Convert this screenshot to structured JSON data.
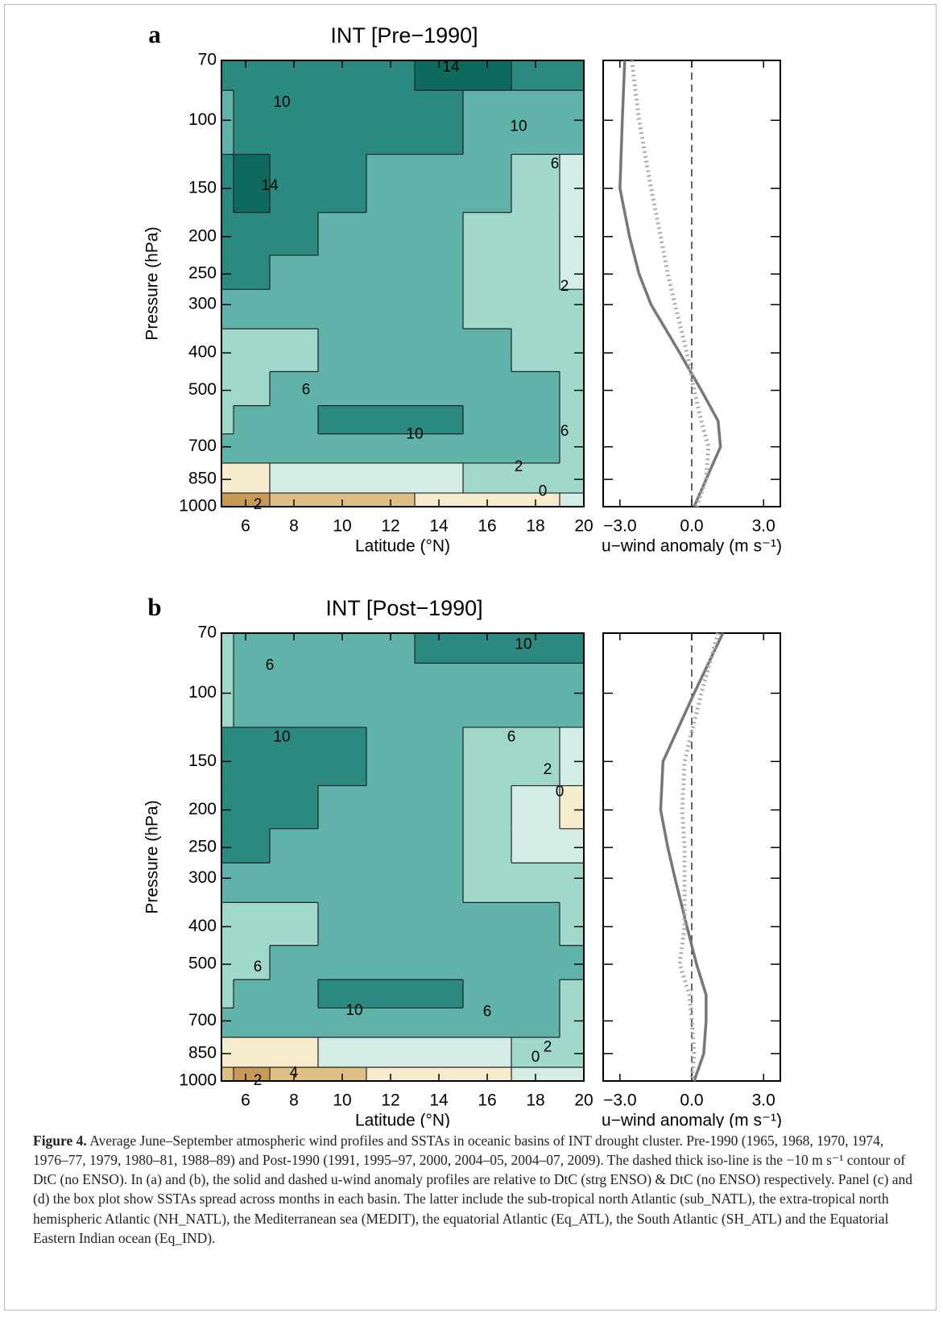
{
  "chart_data": [
    {
      "type": "contour",
      "panel": "a",
      "title": "INT [Pre−1990]",
      "xlabel": "Latitude (°N)",
      "ylabel": "Pressure (hPa)",
      "x": [
        5,
        6,
        8,
        10,
        12,
        14,
        16,
        18,
        20
      ],
      "y": [
        70,
        100,
        150,
        200,
        250,
        300,
        400,
        500,
        600,
        700,
        850,
        1000
      ],
      "z": [
        [
          12,
          11,
          11,
          12,
          13,
          14,
          14,
          12,
          11
        ],
        [
          9,
          10,
          11,
          12,
          11,
          10,
          9,
          8,
          7
        ],
        [
          13,
          15,
          12,
          10,
          9,
          8,
          7,
          4,
          1
        ],
        [
          13,
          13,
          11,
          9,
          8,
          7,
          5,
          2,
          0
        ],
        [
          11,
          10,
          9,
          8,
          7,
          6,
          4,
          2,
          1
        ],
        [
          7,
          7,
          7,
          7,
          7,
          6,
          5,
          3,
          3
        ],
        [
          5,
          5,
          5,
          6,
          7,
          7,
          6,
          5,
          4
        ],
        [
          5,
          5,
          6,
          7,
          8,
          9,
          7,
          6,
          5
        ],
        [
          5,
          6,
          8,
          10,
          11,
          11,
          8,
          6,
          5
        ],
        [
          6,
          6,
          7,
          8,
          8,
          8,
          7,
          6,
          5
        ],
        [
          -1,
          -1,
          0,
          1,
          1,
          1,
          2,
          2,
          2
        ],
        [
          -5,
          -5,
          -4,
          -3,
          -3,
          -2,
          -1,
          -1,
          0
        ]
      ],
      "levels": [
        -4,
        -2,
        0,
        2,
        6,
        10,
        14
      ],
      "colors": [
        "#c99a55",
        "#dfbf84",
        "#f6ebcd",
        "#d3ede6",
        "#a1d8cc",
        "#5fb3a8",
        "#2a8a7f",
        "#0f6a5e"
      ],
      "annotations": [
        {
          "text": "10",
          "x": 7.5,
          "y": 90
        },
        {
          "text": "14",
          "x": 14.5,
          "y": 73
        },
        {
          "text": "10",
          "x": 17.3,
          "y": 104
        },
        {
          "text": "6",
          "x": 18.8,
          "y": 130
        },
        {
          "text": "14",
          "x": 7,
          "y": 148
        },
        {
          "text": "2",
          "x": 19.2,
          "y": 270
        },
        {
          "text": "6",
          "x": 8.5,
          "y": 500
        },
        {
          "text": "10",
          "x": 13,
          "y": 650
        },
        {
          "text": "6",
          "x": 19.2,
          "y": 640
        },
        {
          "text": "2",
          "x": 17.3,
          "y": 790
        },
        {
          "text": "0",
          "x": 18.3,
          "y": 915
        },
        {
          "text": "2",
          "x": 6.5,
          "y": 990
        }
      ],
      "xlim": [
        5,
        20
      ],
      "xticks": [
        6,
        8,
        10,
        12,
        14,
        16,
        18,
        20
      ],
      "ylim": [
        1000,
        70
      ],
      "y_scale": "log",
      "yticks": [
        70,
        100,
        150,
        200,
        250,
        300,
        400,
        500,
        700,
        850,
        1000
      ]
    },
    {
      "type": "line",
      "xlabel": "u−wind anomaly (m s⁻¹)",
      "y": [
        70,
        100,
        150,
        200,
        250,
        300,
        400,
        500,
        600,
        700,
        850,
        1000
      ],
      "series": [
        {
          "style": "solid",
          "color": "#777777",
          "values": [
            -2.8,
            -2.9,
            -3.0,
            -2.6,
            -2.2,
            -1.7,
            -0.5,
            0.4,
            1.1,
            1.2,
            0.6,
            0.1
          ]
        },
        {
          "style": "dotted",
          "color": "#a8a8a8",
          "values": [
            -2.5,
            -2.2,
            -1.7,
            -1.3,
            -1.0,
            -0.7,
            -0.2,
            0.1,
            0.4,
            0.7,
            0.6,
            0.2
          ]
        }
      ],
      "refline": 0,
      "xlim": [
        -3.7,
        3.7
      ],
      "xticks": [
        {
          "value": -3,
          "label": "−3.0"
        },
        {
          "value": 0,
          "label": "0.0"
        },
        {
          "value": 3,
          "label": "3.0"
        }
      ],
      "ylim": [
        1000,
        70
      ],
      "y_scale": "log",
      "yticks": [
        70,
        100,
        150,
        200,
        250,
        300,
        400,
        500,
        700,
        850,
        1000
      ]
    },
    {
      "type": "contour",
      "panel": "b",
      "title": "INT [Post−1990]",
      "xlabel": "Latitude (°N)",
      "ylabel": "Pressure (hPa)",
      "x": [
        5,
        6,
        8,
        10,
        12,
        14,
        16,
        18,
        20
      ],
      "y": [
        70,
        100,
        150,
        200,
        250,
        300,
        400,
        500,
        600,
        700,
        850,
        1000
      ],
      "z": [
        [
          5,
          6,
          7,
          8,
          9,
          12,
          13,
          11,
          10
        ],
        [
          5,
          6,
          7,
          8,
          8,
          8,
          9,
          8,
          8
        ],
        [
          11,
          11,
          11,
          10,
          9,
          7,
          5,
          2,
          1
        ],
        [
          11,
          11,
          11,
          9,
          8,
          6,
          3,
          1,
          -1
        ],
        [
          10,
          10,
          9,
          8,
          7,
          6,
          4,
          1,
          0
        ],
        [
          7,
          7,
          7,
          7,
          7,
          6,
          5,
          3,
          2
        ],
        [
          4,
          4,
          5,
          6,
          7,
          7,
          7,
          6,
          5
        ],
        [
          5,
          5,
          6,
          7,
          8,
          8,
          7,
          6,
          6
        ],
        [
          5,
          6,
          8,
          10,
          11,
          11,
          8,
          6,
          5
        ],
        [
          6,
          6,
          7,
          8,
          8,
          8,
          7,
          6,
          5
        ],
        [
          -2,
          -1,
          -1,
          0,
          0,
          1,
          1,
          2,
          2
        ],
        [
          -4,
          -5,
          -4,
          -3,
          -2,
          -1,
          -1,
          0,
          1
        ]
      ],
      "levels": [
        -4,
        -2,
        0,
        2,
        6,
        10,
        14
      ],
      "colors": [
        "#c99a55",
        "#dfbf84",
        "#f6ebcd",
        "#d3ede6",
        "#a1d8cc",
        "#5fb3a8",
        "#2a8a7f",
        "#0f6a5e"
      ],
      "annotations": [
        {
          "text": "6",
          "x": 7,
          "y": 85
        },
        {
          "text": "10",
          "x": 17.5,
          "y": 75
        },
        {
          "text": "10",
          "x": 7.5,
          "y": 130
        },
        {
          "text": "6",
          "x": 17,
          "y": 130
        },
        {
          "text": "2",
          "x": 18.5,
          "y": 158
        },
        {
          "text": "0",
          "x": 19,
          "y": 180
        },
        {
          "text": "6",
          "x": 6.5,
          "y": 510
        },
        {
          "text": "10",
          "x": 10.5,
          "y": 660
        },
        {
          "text": "6",
          "x": 16,
          "y": 665
        },
        {
          "text": "2",
          "x": 18.5,
          "y": 820
        },
        {
          "text": "0",
          "x": 18,
          "y": 870
        },
        {
          "text": "4",
          "x": 8,
          "y": 955
        },
        {
          "text": "2",
          "x": 6.5,
          "y": 1000
        }
      ],
      "xlim": [
        5,
        20
      ],
      "xticks": [
        6,
        8,
        10,
        12,
        14,
        16,
        18,
        20
      ],
      "ylim": [
        1000,
        70
      ],
      "y_scale": "log",
      "yticks": [
        70,
        100,
        150,
        200,
        250,
        300,
        400,
        500,
        700,
        850,
        1000
      ]
    },
    {
      "type": "line",
      "xlabel": "u−wind anomaly (m s⁻¹)",
      "y": [
        70,
        100,
        150,
        200,
        250,
        300,
        400,
        500,
        600,
        700,
        850,
        1000
      ],
      "series": [
        {
          "style": "solid",
          "color": "#777777",
          "values": [
            1.3,
            0.1,
            -1.2,
            -1.3,
            -1.0,
            -0.7,
            -0.2,
            0.2,
            0.6,
            0.6,
            0.5,
            0.1
          ]
        },
        {
          "style": "dotted",
          "color": "#a8a8a8",
          "values": [
            1.1,
            0.4,
            -0.3,
            -0.4,
            -0.3,
            -0.3,
            -0.3,
            -0.5,
            -0.1,
            0.0,
            0.1,
            0.0
          ]
        }
      ],
      "refline": 0,
      "xlim": [
        -3.7,
        3.7
      ],
      "xticks": [
        {
          "value": -3,
          "label": "−3.0"
        },
        {
          "value": 0,
          "label": "0.0"
        },
        {
          "value": 3,
          "label": "3.0"
        }
      ],
      "ylim": [
        1000,
        70
      ],
      "y_scale": "log",
      "yticks": [
        70,
        100,
        150,
        200,
        250,
        300,
        400,
        500,
        700,
        850,
        1000
      ]
    }
  ],
  "caption": {
    "label": "Figure 4.",
    "text": "Average June–September atmospheric wind profiles and SSTAs in oceanic basins of INT drought cluster. Pre-1990 (1965, 1968, 1970, 1974, 1976–77, 1979, 1980–81, 1988–89) and Post-1990 (1991, 1995–97, 2000, 2004–05, 2004–07, 2009). The dashed thick iso-line is the −10 m s⁻¹ contour of DtC (no ENSO). In (a) and (b), the solid and dashed u-wind anomaly profiles are relative to DtC (strg ENSO) & DtC (no ENSO) respectively. Panel (c) and (d) the box plot show SSTAs spread across months in each basin. The latter include the sub-tropical north Atlantic (sub_NATL), the extra-tropical north hemispheric Atlantic (NH_NATL), the Mediterranean sea (MEDIT), the equatorial Atlantic (Eq_ATL), the South Atlantic (SH_ATL) and the Equatorial Eastern Indian ocean (Eq_IND)."
  }
}
